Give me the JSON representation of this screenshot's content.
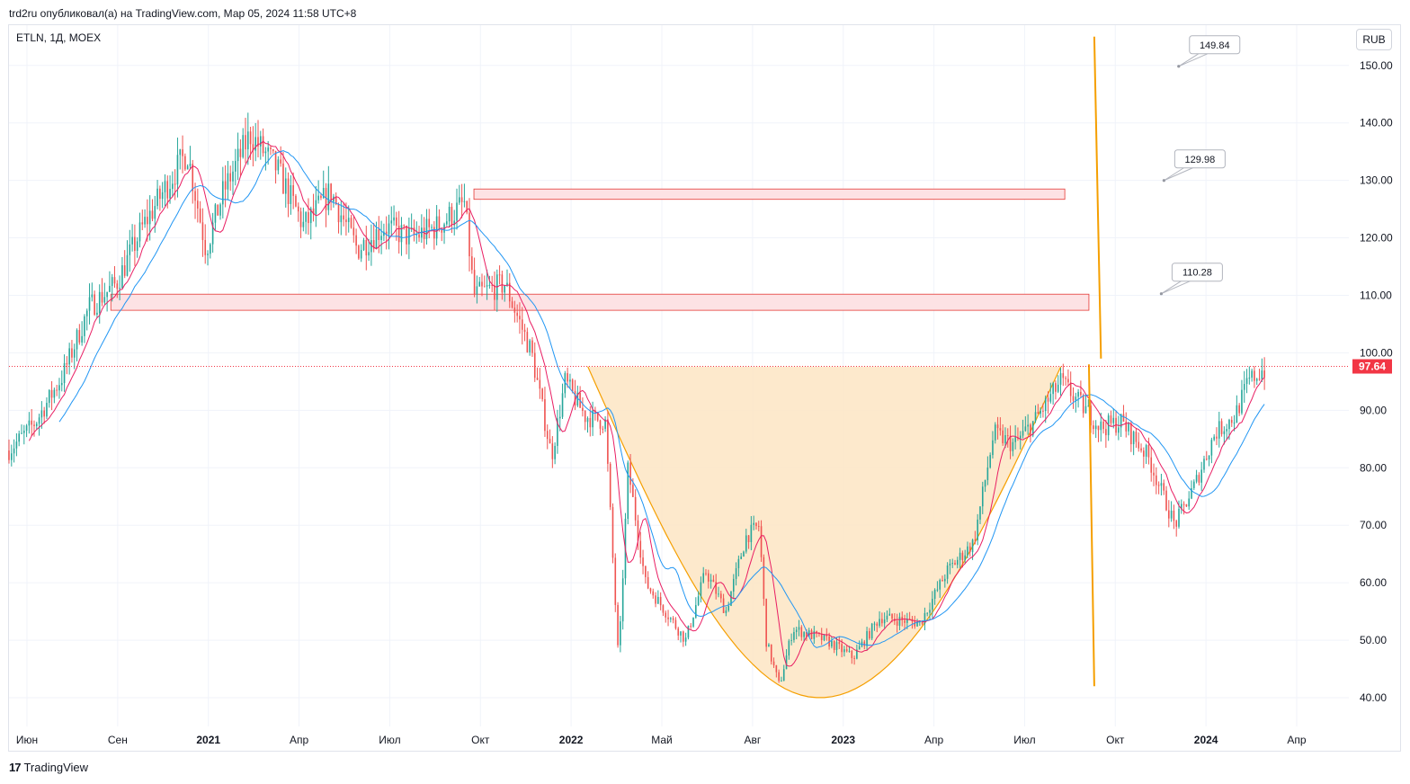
{
  "header": {
    "publish_text": "trd2ru опубликовал(а) на TradingView.com, Мар 05, 2024 11:58 UTC+8"
  },
  "symbol": {
    "label": "ETLN, 1Д, MOEX"
  },
  "currency": {
    "label": "RUB"
  },
  "footer": {
    "logo": "17",
    "brand": "TradingView"
  },
  "colors": {
    "up": "#26a69a",
    "down": "#ef5350",
    "ma_fast": "#e91e63",
    "ma_slow": "#2196f3",
    "cup_fill": "#fde5c3",
    "cup_line": "#f59f00",
    "zone_fill": "#fde2e4",
    "zone_border": "#e53935",
    "price_label": "#f23645"
  },
  "chart_data": {
    "type": "candlestick",
    "ylim": [
      35,
      157
    ],
    "y_ticks": [
      {
        "label": "40.00",
        "value": 40
      },
      {
        "label": "50.00",
        "value": 50
      },
      {
        "label": "60.00",
        "value": 60
      },
      {
        "label": "70.00",
        "value": 70
      },
      {
        "label": "80.00",
        "value": 80
      },
      {
        "label": "90.00",
        "value": 90
      },
      {
        "label": "100.00",
        "value": 100
      },
      {
        "label": "110.00",
        "value": 110
      },
      {
        "label": "120.00",
        "value": 120
      },
      {
        "label": "130.00",
        "value": 130
      },
      {
        "label": "140.00",
        "value": 140
      },
      {
        "label": "150.00",
        "value": 150
      }
    ],
    "x_ticks": [
      {
        "label": "Июн",
        "bold": false
      },
      {
        "label": "Сен",
        "bold": false
      },
      {
        "label": "2021",
        "bold": true
      },
      {
        "label": "Апр",
        "bold": false
      },
      {
        "label": "Июл",
        "bold": false
      },
      {
        "label": "Окт",
        "bold": false
      },
      {
        "label": "2022",
        "bold": true
      },
      {
        "label": "Май",
        "bold": false
      },
      {
        "label": "Авг",
        "bold": false
      },
      {
        "label": "2023",
        "bold": true
      },
      {
        "label": "Апр",
        "bold": false
      },
      {
        "label": "Июл",
        "bold": false
      },
      {
        "label": "Окт",
        "bold": false
      },
      {
        "label": "2024",
        "bold": true
      },
      {
        "label": "Апр",
        "bold": false
      }
    ],
    "last_price": {
      "value": 97.64,
      "label": "97.64"
    },
    "price_path": [
      [
        0,
        83
      ],
      [
        0.02,
        88
      ],
      [
        0.04,
        96
      ],
      [
        0.06,
        108
      ],
      [
        0.08,
        112
      ],
      [
        0.1,
        122
      ],
      [
        0.12,
        130
      ],
      [
        0.133,
        135
      ],
      [
        0.147,
        118
      ],
      [
        0.16,
        128
      ],
      [
        0.18,
        138
      ],
      [
        0.2,
        132
      ],
      [
        0.22,
        122
      ],
      [
        0.24,
        128
      ],
      [
        0.26,
        118
      ],
      [
        0.28,
        122
      ],
      [
        0.3,
        120
      ],
      [
        0.32,
        122
      ],
      [
        0.34,
        126
      ],
      [
        0.347,
        110
      ],
      [
        0.37,
        112
      ],
      [
        0.39,
        100
      ],
      [
        0.405,
        82
      ],
      [
        0.415,
        95
      ],
      [
        0.43,
        89
      ],
      [
        0.445,
        88
      ],
      [
        0.455,
        46
      ],
      [
        0.462,
        80
      ],
      [
        0.475,
        60
      ],
      [
        0.49,
        55
      ],
      [
        0.505,
        50
      ],
      [
        0.52,
        62
      ],
      [
        0.535,
        55
      ],
      [
        0.55,
        68
      ],
      [
        0.56,
        70
      ],
      [
        0.565,
        50
      ],
      [
        0.575,
        42
      ],
      [
        0.585,
        52
      ],
      [
        0.61,
        50
      ],
      [
        0.63,
        47
      ],
      [
        0.65,
        54
      ],
      [
        0.68,
        53
      ],
      [
        0.7,
        62
      ],
      [
        0.72,
        67
      ],
      [
        0.735,
        86
      ],
      [
        0.75,
        84
      ],
      [
        0.765,
        88
      ],
      [
        0.785,
        95
      ],
      [
        0.8,
        91
      ],
      [
        0.815,
        87
      ],
      [
        0.83,
        88
      ],
      [
        0.85,
        82
      ],
      [
        0.87,
        70
      ],
      [
        0.885,
        77
      ],
      [
        0.9,
        86
      ],
      [
        0.915,
        89
      ],
      [
        0.925,
        95
      ],
      [
        0.935,
        97
      ]
    ],
    "zones": [
      {
        "name": "upper-resistance",
        "t0": 0.347,
        "t1": 0.788,
        "y_top": 128.5,
        "y_bottom": 126.7
      },
      {
        "name": "lower-resistance",
        "t0": 0.076,
        "t1": 0.806,
        "y_top": 110.2,
        "y_bottom": 107.4
      }
    ],
    "cup": {
      "t0": 0.432,
      "t1": 0.785,
      "rim": 97.6,
      "bottom": 40,
      "bottom_t": 0.605
    },
    "projection_lines": [
      {
        "t0": 0.81,
        "y0": 155,
        "t1": 0.815,
        "y1": 99
      },
      {
        "t0": 0.806,
        "y0": 98,
        "t1": 0.81,
        "y1": 42
      }
    ],
    "targets": [
      {
        "label": "149.84",
        "value": 149.84,
        "anchor_t": 0.873
      },
      {
        "label": "129.98",
        "value": 129.98,
        "anchor_t": 0.862
      },
      {
        "label": "110.28",
        "value": 110.28,
        "anchor_t": 0.86
      }
    ]
  }
}
